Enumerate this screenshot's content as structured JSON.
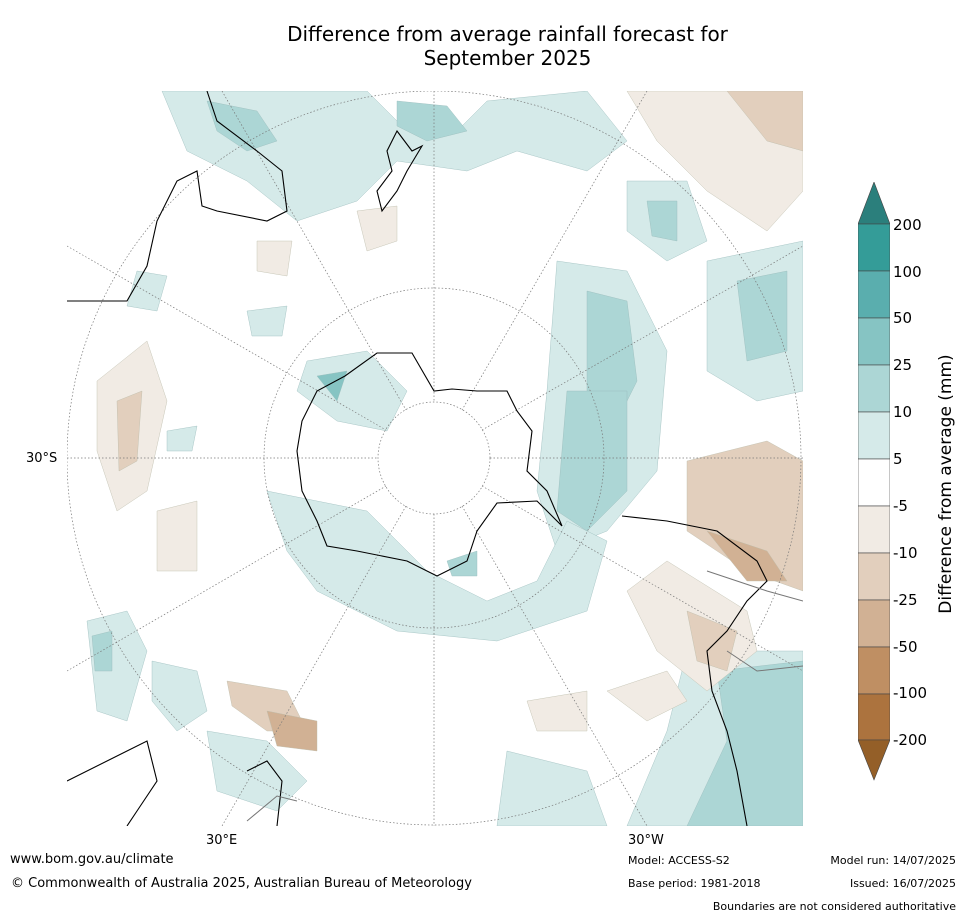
{
  "title_line1": "Difference from average rainfall forecast for",
  "title_line2": "September 2025",
  "map": {
    "lat_label": "30°S",
    "lon_label_east": "30°E",
    "lon_label_west": "30°W"
  },
  "colorbar": {
    "title": "Difference from average (mm)",
    "ticks": [
      "200",
      "100",
      "50",
      "25",
      "10",
      "5",
      "-5",
      "-10",
      "-25",
      "-50",
      "-100",
      "-200"
    ],
    "colors": {
      "over": "#2b7f7c",
      "c200": "#349c98",
      "c100": "#5aaeae",
      "c50": "#86c4c3",
      "c25": "#acd6d5",
      "c10": "#d5eae9",
      "neutral": "#ffffff",
      "d5": "#f1ebe4",
      "d10": "#e2cfbd",
      "d25": "#d1b194",
      "d50": "#bf8f63",
      "d100": "#ac733e",
      "under": "#945f28"
    }
  },
  "footer": {
    "website": "www.bom.gov.au/climate",
    "copyright": "© Commonwealth of Australia 2025, Australian Bureau of Meteorology",
    "model": "Model: ACCESS-S2",
    "base_period": "Base period: 1981-2018",
    "model_run": "Model run: 14/07/2025",
    "issued": "Issued: 16/07/2025",
    "disclaimer": "Boundaries are not considered authoritative"
  }
}
